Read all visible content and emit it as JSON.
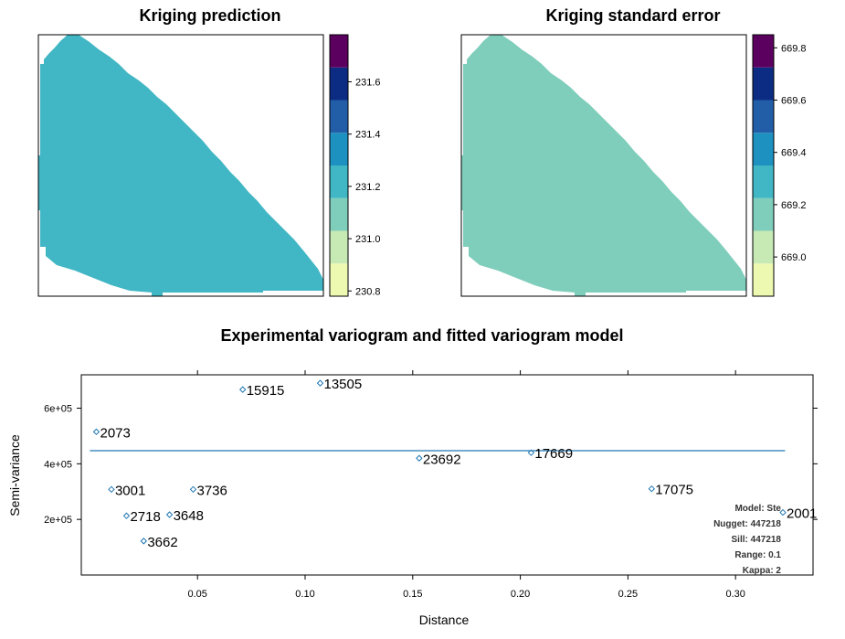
{
  "chart_data": [
    {
      "type": "heatmap",
      "title": "Kriging prediction",
      "colorbar": {
        "colors": [
          "#EDF8B1",
          "#C7E9B4",
          "#7FCDBB",
          "#41B6C4",
          "#1D91C0",
          "#225EA8",
          "#0C2C84",
          "#5C0060"
        ],
        "ticks": [
          "230.8",
          "231.0",
          "231.2",
          "231.4",
          "231.6"
        ],
        "range": [
          230.78,
          231.78
        ]
      },
      "field_value": 231.2
    },
    {
      "type": "heatmap",
      "title": "Kriging standard error",
      "colorbar": {
        "colors": [
          "#EDF8B1",
          "#C7E9B4",
          "#7FCDBB",
          "#41B6C4",
          "#1D91C0",
          "#225EA8",
          "#0C2C84",
          "#5C0060"
        ],
        "ticks": [
          "669.0",
          "669.2",
          "669.4",
          "669.6",
          "669.8"
        ],
        "range": [
          668.85,
          669.85
        ]
      },
      "field_value": 669.2
    },
    {
      "type": "scatter",
      "title": "Experimental variogram and fitted variogram model",
      "xlabel": "Distance",
      "ylabel": "Semi-variance",
      "xlim": [
        -0.004,
        0.336
      ],
      "ylim": [
        0,
        720000
      ],
      "xticks": [
        "0.05",
        "0.10",
        "0.15",
        "0.20",
        "0.25",
        "0.30"
      ],
      "xtick_values": [
        0.05,
        0.1,
        0.15,
        0.2,
        0.25,
        0.3
      ],
      "yticks": [
        "2e+05",
        "4e+05",
        "6e+05"
      ],
      "ytick_values": [
        200000,
        400000,
        600000
      ],
      "points": [
        {
          "x": 0.003,
          "y": 515000,
          "label": "2073"
        },
        {
          "x": 0.01,
          "y": 308000,
          "label": "3001"
        },
        {
          "x": 0.017,
          "y": 213000,
          "label": "2718"
        },
        {
          "x": 0.025,
          "y": 122000,
          "label": "3662"
        },
        {
          "x": 0.037,
          "y": 217000,
          "label": "3648"
        },
        {
          "x": 0.048,
          "y": 308000,
          "label": "3736"
        },
        {
          "x": 0.071,
          "y": 667000,
          "label": "15915"
        },
        {
          "x": 0.107,
          "y": 690000,
          "label": "13505"
        },
        {
          "x": 0.153,
          "y": 420000,
          "label": "23692"
        },
        {
          "x": 0.205,
          "y": 440000,
          "label": "17669"
        },
        {
          "x": 0.261,
          "y": 310000,
          "label": "17075"
        },
        {
          "x": 0.322,
          "y": 225000,
          "label": "2001"
        }
      ],
      "fitted_line": {
        "y": 447218,
        "x_start": 0.0,
        "x_end": 0.323
      },
      "legend": [
        "Model: Ste",
        "Nugget: 447218",
        "Sill: 447218",
        "Range: 0.1",
        "Kappa: 2"
      ],
      "point_color": "#1F77B4",
      "line_color": "#1F77B4"
    }
  ]
}
